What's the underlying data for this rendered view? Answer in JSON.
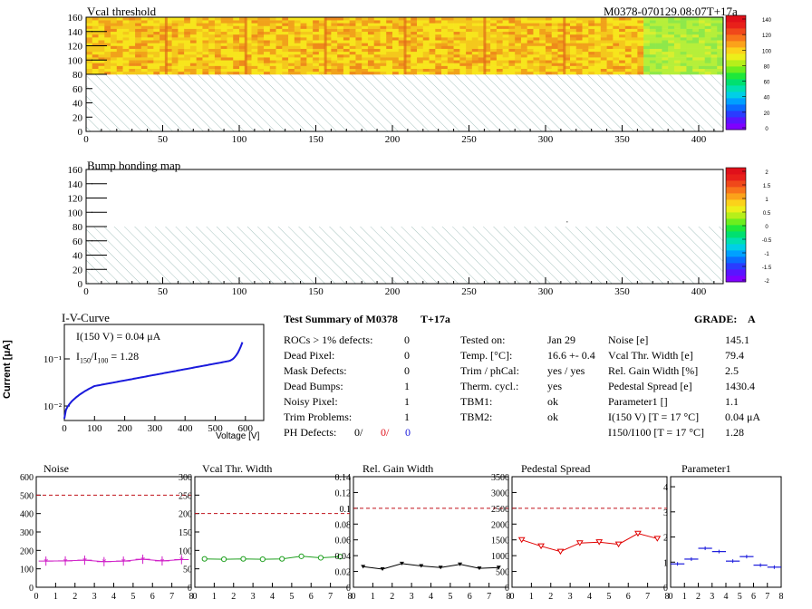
{
  "header": {
    "id_label": "M0378-070129.08:07T+17a"
  },
  "maps": [
    {
      "title": "Vcal threshold",
      "xticks": [
        0,
        50,
        100,
        150,
        200,
        250,
        300,
        350,
        400
      ],
      "yticks": [
        0,
        20,
        40,
        60,
        80,
        100,
        120,
        140,
        160
      ],
      "palette_ticks": [
        "140",
        "120",
        "100",
        "80",
        "60",
        "40",
        "20",
        "0"
      ]
    },
    {
      "title": "Bump bonding map",
      "xticks": [
        0,
        50,
        100,
        150,
        200,
        250,
        300,
        350,
        400
      ],
      "yticks": [
        0,
        20,
        40,
        60,
        80,
        100,
        120,
        140,
        160
      ],
      "palette_ticks": [
        "2",
        "1.5",
        "1",
        "0.5",
        "0",
        "-0.5",
        "-1",
        "-1.5",
        "-2"
      ]
    }
  ],
  "iv": {
    "title": "I-V-Curve",
    "ylabel": "Current [μA]",
    "xlabel": "Voltage [V]",
    "xticks": [
      "0",
      "100",
      "200",
      "300",
      "400",
      "500",
      "600"
    ],
    "yticks": [
      "10⁻¹",
      "10⁻²"
    ],
    "i150_text": "I(150 V) = 0.04 μA",
    "ratio_label": "I150/I100 = ",
    "ratio_value": "1.28"
  },
  "summary": {
    "title": "Test Summary of M0378",
    "tag": "T+17a",
    "grade_label": "GRADE:",
    "grade": "A",
    "left_rows": [
      {
        "label": "ROCs > 1% defects:",
        "value": "0"
      },
      {
        "label": "Dead Pixel:",
        "value": "0"
      },
      {
        "label": "Mask Defects:",
        "value": "0"
      },
      {
        "label": "Dead Bumps:",
        "value": "1"
      },
      {
        "label": "Noisy Pixel:",
        "value": "1"
      },
      {
        "label": "Trim Problems:",
        "value": "1"
      }
    ],
    "ph_label": "PH Defects:",
    "ph_values": [
      "0/",
      "0/",
      "0"
    ],
    "ph_colors": [
      "#000000",
      "#e0101a",
      "#1a1adc"
    ],
    "mid_rows": [
      {
        "label": "Tested on:",
        "value": "Jan 29"
      },
      {
        "label": "Temp. [°C]:",
        "value": "16.6 +- 0.4"
      },
      {
        "label": "Trim / phCal:",
        "value": "yes / yes"
      },
      {
        "label": "Therm. cycl.:",
        "value": "yes"
      },
      {
        "label": "TBM1:",
        "value": "ok"
      },
      {
        "label": "TBM2:",
        "value": "ok"
      }
    ],
    "right_rows": [
      {
        "label": "Noise [e]",
        "value": "145.1"
      },
      {
        "label": "Vcal Thr. Width [e]",
        "value": "79.4"
      },
      {
        "label": "Rel. Gain Width [%]",
        "value": "2.5"
      },
      {
        "label": "Pedestal Spread [e]",
        "value": "1430.4"
      },
      {
        "label": "Parameter1 []",
        "value": "1.1"
      },
      {
        "label": "I(150 V) [T = 17 °C]",
        "value": "0.04 μA"
      },
      {
        "label": "I150/I100  [T = 17 °C]",
        "value": "1.28"
      }
    ]
  },
  "chart_data": [
    {
      "type": "line",
      "title": "Noise",
      "x": [
        0.5,
        1.5,
        2.5,
        3.5,
        4.5,
        5.5,
        6.5,
        7.5
      ],
      "y": [
        142,
        143,
        147,
        139,
        142,
        152,
        143,
        150
      ],
      "err": [
        25,
        25,
        25,
        25,
        25,
        25,
        25,
        25
      ],
      "ylim": [
        0,
        600
      ],
      "yticks": [
        0,
        100,
        200,
        300,
        400,
        500,
        600
      ],
      "xticks": [
        0,
        1,
        2,
        3,
        4,
        5,
        6,
        7,
        8
      ],
      "threshold": 500,
      "color": "#d020c8",
      "marker": "star"
    },
    {
      "type": "line",
      "title": "Vcal Thr. Width",
      "x": [
        0.5,
        1.5,
        2.5,
        3.5,
        4.5,
        5.5,
        6.5,
        7.5
      ],
      "y": [
        77,
        76,
        77,
        76,
        77,
        84,
        80,
        83
      ],
      "err": [
        0,
        0,
        0,
        0,
        0,
        0,
        0,
        0
      ],
      "ylim": [
        0,
        300
      ],
      "yticks": [
        0,
        50,
        100,
        150,
        200,
        250,
        300
      ],
      "xticks": [
        0,
        1,
        2,
        3,
        4,
        5,
        6,
        7,
        8
      ],
      "threshold": 200,
      "color": "#20a020",
      "marker": "circle"
    },
    {
      "type": "line",
      "title": "Rel. Gain Width",
      "x": [
        0.5,
        1.5,
        2.5,
        3.5,
        4.5,
        5.5,
        6.5,
        7.5
      ],
      "y": [
        0.026,
        0.023,
        0.03,
        0.027,
        0.025,
        0.029,
        0.024,
        0.025
      ],
      "err": [
        0,
        0,
        0,
        0,
        0,
        0,
        0,
        0
      ],
      "ylim": [
        0,
        0.14
      ],
      "yticks": [
        0,
        0.02,
        0.04,
        0.06,
        0.08,
        0.1,
        0.12,
        0.14
      ],
      "xticks": [
        0,
        1,
        2,
        3,
        4,
        5,
        6,
        7,
        8
      ],
      "threshold": 0.1,
      "color": "#000000",
      "marker": "triangle"
    },
    {
      "type": "line",
      "title": "Pedestal Spread",
      "x": [
        0.5,
        1.5,
        2.5,
        3.5,
        4.5,
        5.5,
        6.5,
        7.5
      ],
      "y": [
        1500,
        1300,
        1130,
        1400,
        1430,
        1360,
        1700,
        1540
      ],
      "err": [
        0,
        0,
        0,
        0,
        0,
        0,
        0,
        0
      ],
      "ylim": [
        0,
        3500
      ],
      "yticks": [
        0,
        500,
        1000,
        1500,
        2000,
        2500,
        3000,
        3500
      ],
      "xticks": [
        0,
        1,
        2,
        3,
        4,
        5,
        6,
        7,
        8
      ],
      "threshold": 2500,
      "color": "#e00000",
      "marker": "triangle-open"
    },
    {
      "type": "scatter",
      "title": "Parameter1",
      "x": [
        0.5,
        1.5,
        2.5,
        3.5,
        4.5,
        5.5,
        6.5,
        7.5
      ],
      "y": [
        0.93,
        1.12,
        1.55,
        1.42,
        1.04,
        1.22,
        0.88,
        0.8
      ],
      "err": [
        0,
        0,
        0,
        0,
        0,
        0,
        0,
        0
      ],
      "ylim": [
        0,
        4.4
      ],
      "yticks": [
        0,
        1,
        2,
        3,
        4
      ],
      "xticks": [
        0,
        1,
        2,
        3,
        4,
        5,
        6,
        7,
        8
      ],
      "threshold": null,
      "color": "#1a1adc",
      "marker": "hbar"
    }
  ]
}
